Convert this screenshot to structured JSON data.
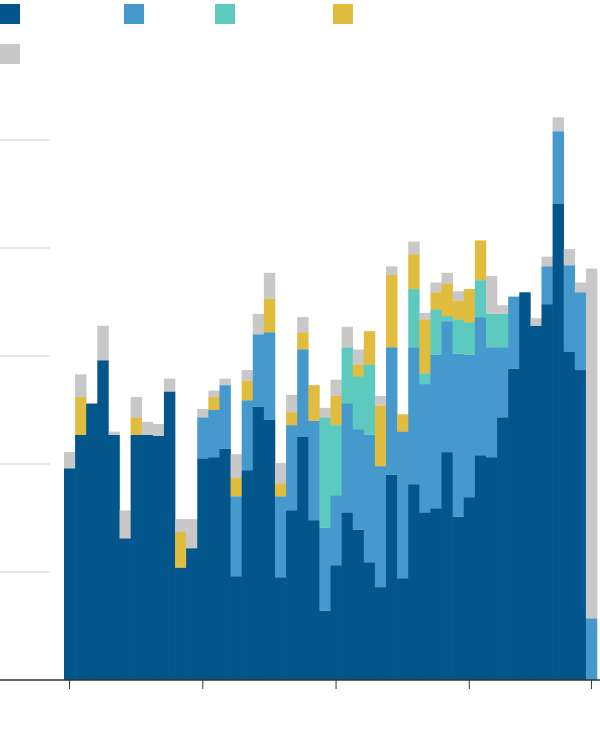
{
  "chart_data": {
    "type": "stacked-bar",
    "categories": [
      null,
      null,
      null,
      null,
      null,
      null,
      null,
      null,
      null,
      null,
      null,
      null,
      null,
      null,
      null,
      null,
      null,
      null,
      null,
      null,
      null,
      null,
      null,
      null,
      null,
      null,
      null,
      null,
      null,
      null,
      null,
      null,
      null,
      null,
      null,
      null,
      null,
      null,
      null,
      null,
      null,
      null,
      null,
      null,
      null,
      null,
      null,
      null
    ],
    "series": [
      {
        "color": "#03568c",
        "values": [
          1.96,
          2.27,
          2.56,
          2.96,
          2.27,
          1.31,
          2.27,
          2.27,
          2.26,
          2.67,
          1.04,
          1.22,
          2.05,
          2.06,
          2.14,
          0.96,
          1.94,
          2.53,
          2.41,
          0.95,
          1.57,
          2.25,
          1.48,
          0.64,
          1.06,
          1.55,
          1.39,
          1.09,
          0.86,
          1.9,
          0.94,
          1.81,
          1.55,
          1.59,
          2.11,
          1.51,
          1.69,
          2.08,
          2.06,
          2.43,
          2.88,
          3.59,
          3.28,
          3.48,
          4.41,
          3.04,
          2.87,
          0
        ]
      },
      {
        "color": "#4599cd",
        "values": [
          0,
          0,
          0,
          0,
          0,
          0,
          0,
          0,
          0,
          0,
          0,
          0,
          0.38,
          0.44,
          0.59,
          0.74,
          0.65,
          0.67,
          0.81,
          0.75,
          0.79,
          0.81,
          0.92,
          0.77,
          0.65,
          1.01,
          0.93,
          1.18,
          1.12,
          1.18,
          1.36,
          1.27,
          1.19,
          1.42,
          1.21,
          1.51,
          1.32,
          1.28,
          1.02,
          0.65,
          0.67,
          0,
          0,
          0.35,
          0.67,
          0.8,
          0.72,
          0.57
        ]
      },
      {
        "color": "#5ccabf",
        "values": [
          0,
          0,
          0,
          0,
          0,
          0,
          0,
          0,
          0,
          0,
          0,
          0,
          0,
          0,
          0,
          0,
          0,
          0,
          0,
          0,
          0,
          0,
          0,
          1.02,
          0.65,
          0.52,
          0.49,
          0.65,
          0,
          0,
          0,
          0.54,
          0.1,
          0.42,
          0.05,
          0.32,
          0.3,
          0.34,
          0.31,
          0.31,
          0,
          0,
          0,
          0,
          0,
          0,
          0,
          0
        ]
      },
      {
        "color": "#e0bd3e",
        "values": [
          0,
          0.35,
          0,
          0,
          0,
          0,
          0.16,
          0,
          0,
          0,
          0.33,
          0,
          0,
          0.12,
          0,
          0.17,
          0.18,
          0,
          0.31,
          0.12,
          0.12,
          0.16,
          0.33,
          0,
          0.27,
          0,
          0.11,
          0.31,
          0.56,
          0.67,
          0.16,
          0.32,
          0.5,
          0.16,
          0.3,
          0.17,
          0.31,
          0.37,
          0,
          0,
          0,
          0,
          0,
          0,
          0,
          0,
          0,
          0
        ]
      },
      {
        "color": "#c8c8c8",
        "values": [
          0.15,
          0.21,
          0,
          0.32,
          0.03,
          0.26,
          0.19,
          0.12,
          0.11,
          0.12,
          0.12,
          0.27,
          0.08,
          0.06,
          0.06,
          0.22,
          0.1,
          0.19,
          0.24,
          0.19,
          0.16,
          0.14,
          0,
          0.09,
          0.15,
          0.19,
          0.14,
          0,
          0.09,
          0.08,
          0,
          0.12,
          0.06,
          0.09,
          0.1,
          0.09,
          0,
          0,
          0.35,
          0.08,
          0,
          0,
          0.07,
          0.09,
          0.13,
          0.15,
          0.09,
          3.24
        ]
      }
    ],
    "ylim": [
      0,
      6
    ],
    "yticks": [
      0,
      1,
      2,
      3,
      4,
      5
    ],
    "xticks": [
      0,
      12,
      24,
      36,
      47
    ],
    "grid": true
  }
}
